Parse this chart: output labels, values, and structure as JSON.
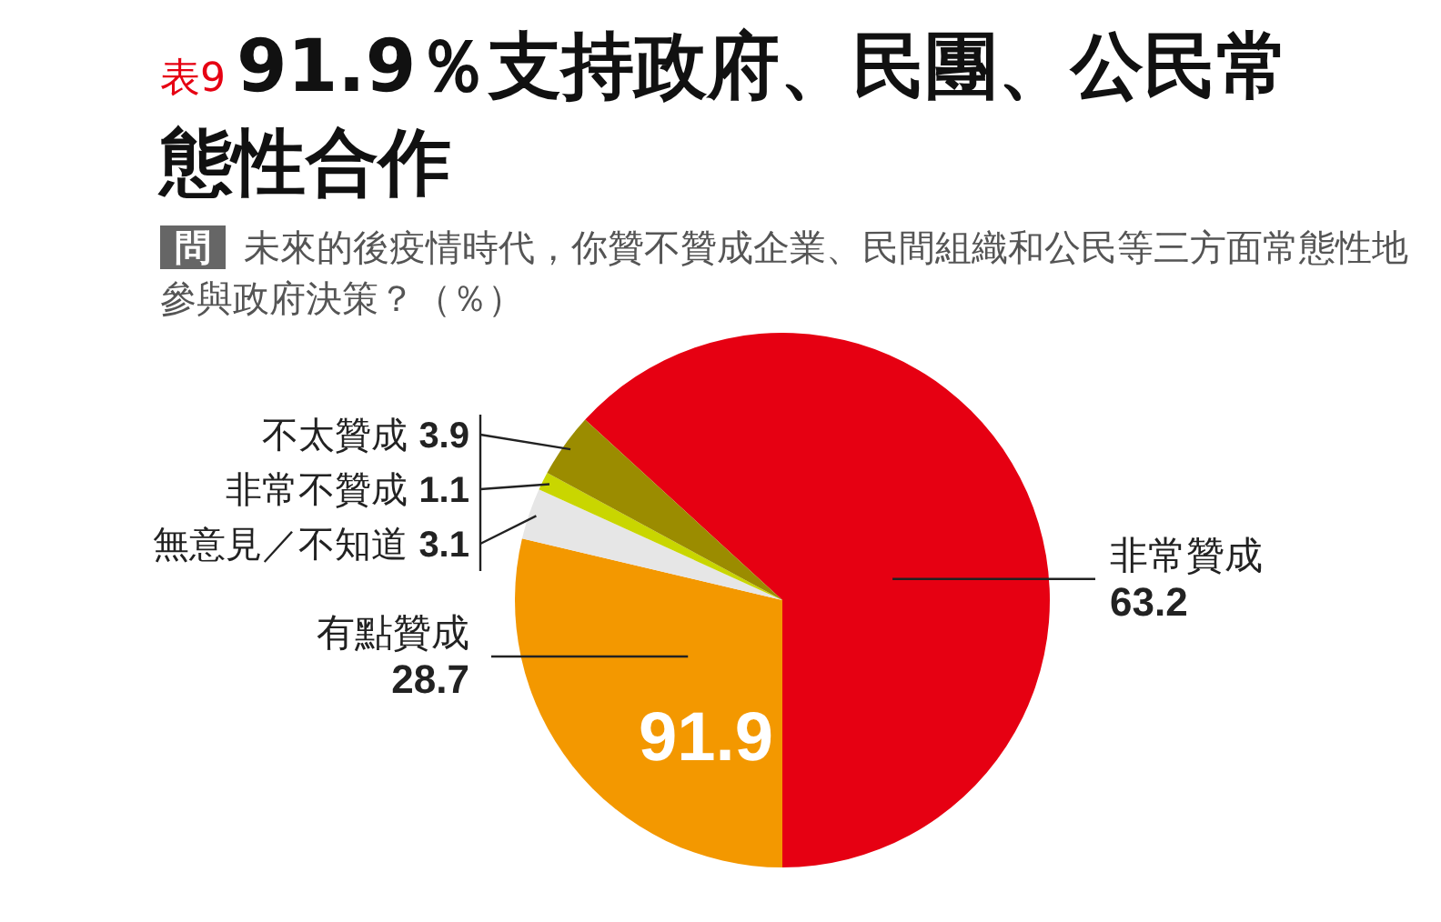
{
  "chart_data": {
    "type": "pie",
    "title": "91.9％支持政府、民團、公民常態性合作",
    "subtitle": "未來的後疫情時代，你贊不贊成企業、民間組織和公民等三方面常態性地參與政府決策？（％）",
    "annotations": [
      "表9",
      "問",
      "91.9"
    ],
    "categories": [
      "非常贊成",
      "有點贊成",
      "無意見／不知道",
      "非常不贊成",
      "不太贊成"
    ],
    "values": [
      63.2,
      28.7,
      3.1,
      1.1,
      3.9
    ],
    "colors": [
      "#e60012",
      "#f39800",
      "#e6e6e6",
      "#c9d600",
      "#9b8c00"
    ],
    "data_labels": true
  }
}
